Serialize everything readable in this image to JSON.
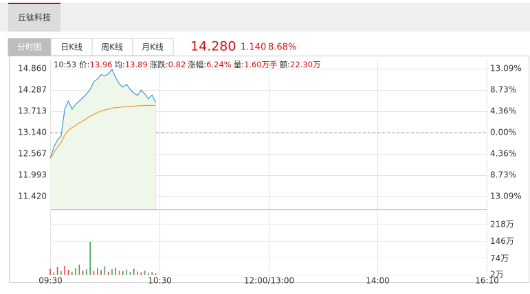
{
  "header": {
    "tab": "丘钛科技"
  },
  "tabs": [
    "分时图",
    "日K线",
    "周K线",
    "月K线"
  ],
  "quote": {
    "price": "14.280",
    "change": "1.140",
    "percent": "8.68%"
  },
  "info": {
    "time": "10:53",
    "items": [
      {
        "label": "价:",
        "value": "13.96"
      },
      {
        "label": "均:",
        "value": "13.89"
      },
      {
        "label": "涨跌:",
        "value": "0.82"
      },
      {
        "label": "涨幅:",
        "value": "6.24%"
      },
      {
        "label": "量:",
        "value": "1.60万手"
      },
      {
        "label": "额:",
        "value": "22.30万"
      }
    ]
  },
  "chart_data": [
    {
      "type": "line",
      "x": [
        0,
        2,
        4,
        6,
        8,
        10,
        12,
        14,
        16,
        18,
        20,
        22,
        24,
        26,
        28,
        30,
        32,
        34,
        36,
        38,
        40,
        42,
        44,
        46,
        48,
        50,
        52,
        54,
        56,
        58
      ],
      "xlim": [
        0,
        240
      ],
      "xticks": [
        0,
        60,
        120,
        180,
        240
      ],
      "ylim": [
        11.07,
        15.08
      ],
      "yticks": [
        {
          "value": 14.86,
          "label": "14.860"
        },
        14.287,
        13.713,
        {
          "value": 13.14,
          "label": "13.140"
        },
        12.567,
        11.993,
        {
          "value": 11.42,
          "label": "11.420"
        }
      ],
      "y2lim": [
        -15.75,
        14.76
      ],
      "y2ticks": [
        {
          "value": 13.09,
          "label": "13.09%"
        },
        {
          "value": 8.73,
          "label": "8.73%"
        },
        {
          "value": 4.36,
          "label": "4.36%"
        },
        {
          "value": 0,
          "label": "0.00%"
        },
        {
          "value": -4.36,
          "label": "4.36%"
        },
        {
          "value": -8.73,
          "label": "8.73%"
        },
        {
          "value": -13.09,
          "label": "13.09%"
        }
      ],
      "grid": true,
      "series": [
        {
          "color": "#3c9ad6",
          "fill": "#eef7ea",
          "values": [
            12.44,
            12.75,
            12.94,
            13.05,
            13.77,
            13.99,
            13.77,
            13.9,
            13.99,
            14.08,
            14.18,
            14.3,
            14.51,
            14.58,
            14.7,
            14.66,
            14.72,
            14.84,
            14.62,
            14.45,
            14.36,
            14.44,
            14.3,
            14.2,
            14.14,
            14.28,
            14.18,
            14.05,
            14.15,
            13.95
          ]
        },
        {
          "color": "#ee9a2e",
          "values": [
            12.44,
            12.6,
            12.75,
            12.88,
            13.08,
            13.2,
            13.27,
            13.33,
            13.4,
            13.45,
            13.52,
            13.58,
            13.63,
            13.68,
            13.72,
            13.75,
            13.77,
            13.8,
            13.81,
            13.82,
            13.83,
            13.84,
            13.85,
            13.85,
            13.86,
            13.86,
            13.87,
            13.87,
            13.87,
            13.87
          ]
        }
      ]
    },
    {
      "type": "bar",
      "x": [
        0,
        2,
        4,
        6,
        8,
        10,
        12,
        14,
        16,
        18,
        20,
        22,
        24,
        26,
        28,
        30,
        32,
        34,
        36,
        38,
        40,
        42,
        44,
        46,
        48,
        50,
        52,
        54,
        56,
        58
      ],
      "xlim": [
        0,
        240
      ],
      "xticks": [
        {
          "value": 0,
          "label": "09:30"
        },
        {
          "value": 60,
          "label": "10:30"
        },
        {
          "value": 120,
          "label": "12:00/13:00"
        },
        {
          "value": 180,
          "label": "14:00"
        },
        {
          "value": 240,
          "label": "16:10"
        }
      ],
      "ylim": [
        2,
        279
      ],
      "yticks": [
        {
          "value": 218,
          "label": "218万"
        },
        {
          "value": 146,
          "label": "146万"
        },
        {
          "value": 74,
          "label": "74万"
        },
        {
          "value": 2,
          "label": "2万"
        }
      ],
      "values": [
        28,
        12,
        35,
        18,
        40,
        22,
        15,
        30,
        45,
        20,
        25,
        142,
        18,
        30,
        22,
        38,
        15,
        26,
        32,
        20,
        18,
        24,
        14,
        28,
        16,
        12,
        20,
        10,
        14,
        8
      ],
      "colors": [
        "#e04040",
        "#3aa655",
        "#e04040",
        "#3aa655",
        "#e04040",
        "#e04040",
        "#3aa655",
        "#e04040",
        "#3aa655",
        "#e04040",
        "#3aa655",
        "#3aa655",
        "#e04040",
        "#3aa655",
        "#e04040",
        "#3aa655",
        "#e04040",
        "#3aa655",
        "#e04040",
        "#3aa655",
        "#e04040",
        "#3aa655",
        "#3aa655",
        "#e04040",
        "#3aa655",
        "#e04040",
        "#3aa655",
        "#e04040",
        "#3aa655",
        "#e04040"
      ]
    }
  ]
}
